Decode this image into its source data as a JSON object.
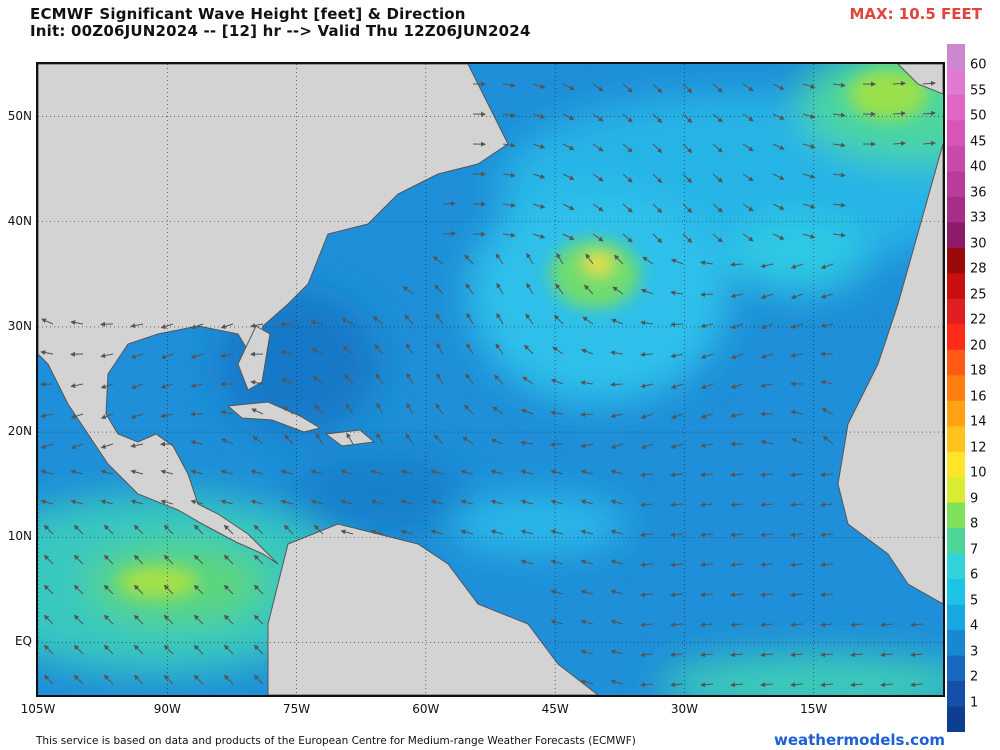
{
  "header": {
    "title": "ECMWF Significant Wave Height [feet] & Direction",
    "subtitle": "Init: 00Z06JUN2024 -- [12] hr --> Valid Thu 12Z06JUN2024",
    "max_label": "MAX: 10.5 FEET"
  },
  "map": {
    "region": "North Atlantic",
    "lon_range": [
      -105,
      0
    ],
    "lat_range": [
      -5,
      55
    ],
    "lat_labels": [
      "50N",
      "40N",
      "30N",
      "20N",
      "10N",
      "EQ"
    ],
    "lat_values": [
      50,
      40,
      30,
      20,
      10,
      0
    ],
    "lon_labels": [
      "105W",
      "90W",
      "75W",
      "60W",
      "45W",
      "30W",
      "15W"
    ],
    "lon_values": [
      -105,
      -90,
      -75,
      -60,
      -45,
      -30,
      -15
    ],
    "land_color": "#d3d3d3",
    "boundary_color": "#555555",
    "arrow_color": "#555555"
  },
  "colorbar": {
    "labels": [
      "60",
      "55",
      "50",
      "45",
      "40",
      "36",
      "33",
      "30",
      "28",
      "25",
      "22",
      "20",
      "18",
      "16",
      "14",
      "12",
      "10",
      "9",
      "8",
      "7",
      "6",
      "5",
      "4",
      "3",
      "2",
      "1"
    ],
    "colors": [
      "#cc88cc",
      "#e07ad0",
      "#e066c6",
      "#d855b8",
      "#c94aaa",
      "#b83c98",
      "#a62e86",
      "#8e1a6a",
      "#9a0a0a",
      "#c81010",
      "#e02020",
      "#ff2a1a",
      "#ff5a14",
      "#ff7e10",
      "#ffa114",
      "#ffc21c",
      "#ffe42a",
      "#d8ec34",
      "#7fe05a",
      "#4ed698",
      "#32d2d8",
      "#1ec4e8",
      "#18a8e0",
      "#1888d0",
      "#1868c0",
      "#1450a8",
      "#0e3e90"
    ]
  },
  "footer": {
    "text": "This service is based on data and products of the European Centre for Medium-range Weather Forecasts (ECMWF)",
    "brand": "weathermodels.com"
  }
}
